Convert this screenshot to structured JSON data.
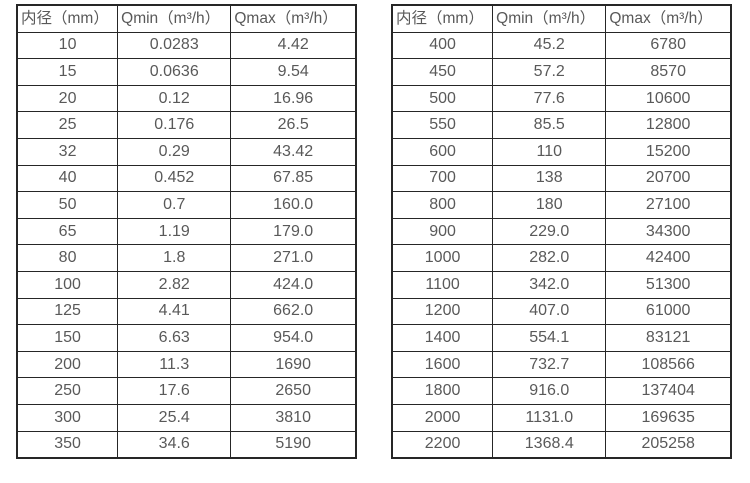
{
  "colors": {
    "background": "#ffffff",
    "border": "#262626",
    "text": "#595959"
  },
  "tables": [
    {
      "id": "small-diameter-flow-table",
      "headers": [
        "内径（mm）",
        "Qmin（m³/h）",
        "Qmax（m³/h）"
      ],
      "rows": [
        [
          "10",
          "0.0283",
          "4.42"
        ],
        [
          "15",
          "0.0636",
          "9.54"
        ],
        [
          "20",
          "0.12",
          "16.96"
        ],
        [
          "25",
          "0.176",
          "26.5"
        ],
        [
          "32",
          "0.29",
          "43.42"
        ],
        [
          "40",
          "0.452",
          "67.85"
        ],
        [
          "50",
          "0.7",
          "160.0"
        ],
        [
          "65",
          "1.19",
          "179.0"
        ],
        [
          "80",
          "1.8",
          "271.0"
        ],
        [
          "100",
          "2.82",
          "424.0"
        ],
        [
          "125",
          "4.41",
          "662.0"
        ],
        [
          "150",
          "6.63",
          "954.0"
        ],
        [
          "200",
          "11.3",
          "1690"
        ],
        [
          "250",
          "17.6",
          "2650"
        ],
        [
          "300",
          "25.4",
          "3810"
        ],
        [
          "350",
          "34.6",
          "5190"
        ]
      ]
    },
    {
      "id": "large-diameter-flow-table",
      "headers": [
        "内径（mm）",
        "Qmin（m³/h）",
        "Qmax（m³/h）"
      ],
      "rows": [
        [
          "400",
          "45.2",
          "6780"
        ],
        [
          "450",
          "57.2",
          "8570"
        ],
        [
          "500",
          "77.6",
          "10600"
        ],
        [
          "550",
          "85.5",
          "12800"
        ],
        [
          "600",
          "110",
          "15200"
        ],
        [
          "700",
          "138",
          "20700"
        ],
        [
          "800",
          "180",
          "27100"
        ],
        [
          "900",
          "229.0",
          "34300"
        ],
        [
          "1000",
          "282.0",
          "42400"
        ],
        [
          "1100",
          "342.0",
          "51300"
        ],
        [
          "1200",
          "407.0",
          "61000"
        ],
        [
          "1400",
          "554.1",
          "83121"
        ],
        [
          "1600",
          "732.7",
          "108566"
        ],
        [
          "1800",
          "916.0",
          "137404"
        ],
        [
          "2000",
          "1131.0",
          "169635"
        ],
        [
          "2200",
          "1368.4",
          "205258"
        ]
      ]
    }
  ]
}
